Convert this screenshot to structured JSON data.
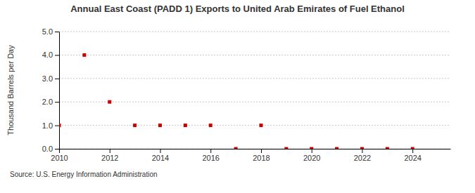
{
  "chart_data": {
    "type": "scatter",
    "title": "Annual East Coast (PADD 1) Exports to United Arab Emirates of Fuel Ethanol",
    "y_label": "Thousand Barrels per Day",
    "annotations": [
      "Source: U.S. Energy Information Administration"
    ],
    "x": [
      2010,
      2011,
      2012,
      2013,
      2014,
      2015,
      2016,
      2017,
      2018,
      2019,
      2020,
      2021,
      2022,
      2023,
      2024
    ],
    "values": [
      1,
      4,
      2,
      1,
      1,
      1,
      1,
      0,
      1,
      0,
      0,
      0,
      0,
      0,
      0
    ],
    "color": "#cc0000",
    "marker": "square",
    "xlim": [
      2010,
      2025.5
    ],
    "xticks": [
      2010,
      2012,
      2014,
      2016,
      2018,
      2020,
      2022,
      2024
    ],
    "ylim": [
      0,
      5
    ],
    "yticks": [
      {
        "value": 0,
        "label": "0.0"
      },
      {
        "value": 1,
        "label": "1.0"
      },
      {
        "value": 2,
        "label": "2.0"
      },
      {
        "value": 3,
        "label": "3.0"
      },
      {
        "value": 4,
        "label": "4.0"
      },
      {
        "value": 5,
        "label": "5.0"
      }
    ],
    "grid": true
  }
}
